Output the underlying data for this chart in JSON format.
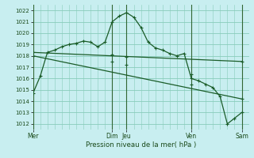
{
  "xlabel": "Pression niveau de la mer( hPa )",
  "ylim": [
    1011.5,
    1022.5
  ],
  "yticks": [
    1012,
    1013,
    1014,
    1015,
    1016,
    1017,
    1018,
    1019,
    1020,
    1021,
    1022
  ],
  "background_color": "#c8eef0",
  "grid_color": "#88ccbb",
  "line_color": "#1a5c28",
  "vert_line_color": "#336633",
  "xtick_pos": [
    0,
    11,
    13,
    22,
    29
  ],
  "xtick_labels": [
    "Mer",
    "Dim",
    "Jeu",
    "Ven",
    "Sam"
  ],
  "xlim": [
    0,
    30
  ],
  "series1_x": [
    0,
    1,
    2,
    3,
    4,
    5,
    6,
    7,
    8,
    9,
    10,
    11,
    12,
    13,
    14,
    15,
    16,
    17,
    18,
    19,
    20,
    21,
    22,
    23,
    24,
    25,
    26,
    27,
    28,
    29
  ],
  "series1_y": [
    1014.7,
    1016.2,
    1018.3,
    1018.5,
    1018.8,
    1019.0,
    1019.1,
    1019.3,
    1019.2,
    1018.8,
    1019.2,
    1021.0,
    1021.5,
    1021.8,
    1021.4,
    1020.5,
    1019.2,
    1018.7,
    1018.5,
    1018.2,
    1018.0,
    1018.2,
    1016.0,
    1015.8,
    1015.5,
    1015.2,
    1014.4,
    1012.0,
    1012.5,
    1013.0
  ],
  "series2_x": [
    0,
    29
  ],
  "series2_y": [
    1018.3,
    1017.5
  ],
  "series3_x": [
    0,
    29
  ],
  "series3_y": [
    1018.0,
    1014.2
  ],
  "marker_series1_x": [
    0,
    1,
    2,
    3,
    4,
    5,
    6,
    7,
    8,
    9,
    10,
    11,
    12,
    13,
    14,
    15,
    16,
    17,
    18,
    19,
    20,
    21,
    22,
    23,
    24,
    25,
    26,
    27,
    28,
    29
  ],
  "marker_series2_x": [
    0,
    11,
    13,
    22,
    29
  ],
  "marker_series2_y": [
    1018.3,
    1018.1,
    1017.9,
    1016.4,
    1017.5
  ],
  "marker_series3_x": [
    0,
    11,
    13,
    22,
    29
  ],
  "marker_series3_y": [
    1018.0,
    1017.5,
    1017.2,
    1015.5,
    1014.2
  ]
}
